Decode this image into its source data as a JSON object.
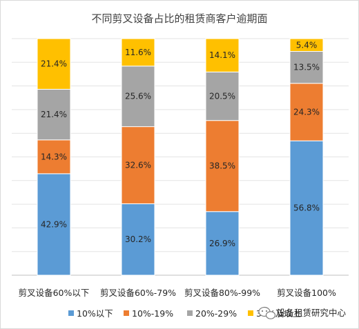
{
  "chart_data": {
    "type": "bar",
    "stacked": true,
    "normalized": true,
    "title": "不同剪叉设备占比的租赁商客户逾期面",
    "categories": [
      "剪叉设备60%以下",
      "剪叉设备60%-79%",
      "剪叉设备80%-99%",
      "剪叉设备100%"
    ],
    "series": [
      {
        "name": "10%以下",
        "color": "#5B9BD5",
        "values": [
          42.9,
          30.2,
          26.9,
          56.8
        ]
      },
      {
        "name": "10%-19%",
        "color": "#ED7D31",
        "values": [
          14.3,
          32.6,
          38.5,
          24.3
        ]
      },
      {
        "name": "20%-29%",
        "color": "#A5A5A5",
        "values": [
          21.4,
          25.6,
          20.5,
          13.5
        ]
      },
      {
        "name": "30%及以上",
        "color": "#FFC000",
        "values": [
          21.4,
          11.6,
          14.1,
          5.4
        ]
      }
    ],
    "data_labels": [
      [
        "42.9%",
        "30.2%",
        "26.9%",
        "56.8%"
      ],
      [
        "14.3%",
        "32.6%",
        "38.5%",
        "24.3%"
      ],
      [
        "21.4%",
        "25.6%",
        "20.5%",
        "13.5%"
      ],
      [
        "21.4%",
        "11.6%",
        "14.1%",
        "5.4%"
      ]
    ],
    "ylim": [
      0,
      100
    ],
    "grid": true,
    "legend": "bottom"
  },
  "watermark": {
    "icon": "wechat-icon",
    "text": "设备租赁研究中心"
  }
}
